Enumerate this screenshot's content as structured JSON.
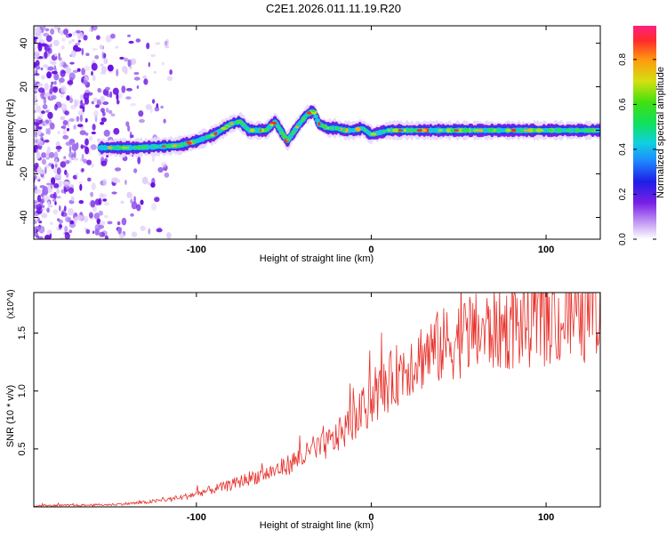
{
  "title": "C2E1.2026.011.11.19.R20",
  "chart_data": [
    {
      "type": "heatmap",
      "xlabel": "Height of straight line (km)",
      "ylabel": "Frequency (Hz)",
      "xlim": [
        -193,
        131
      ],
      "ylim": [
        -50,
        48
      ],
      "xticks": [
        -100,
        0,
        100
      ],
      "yticks": [
        -40,
        -20,
        0,
        20,
        40
      ],
      "colorbar": {
        "label": "Normalized spectral amplitude",
        "range": [
          0,
          0.95
        ],
        "ticks": [
          "0.0",
          "0.2",
          "0.4",
          "0.6",
          "0.8"
        ]
      },
      "ridge": {
        "x": [
          -155,
          -135,
          -110,
          -100,
          -90,
          -80,
          -75,
          -70,
          -60,
          -55,
          -48,
          -42,
          -37,
          -33,
          -30,
          -25,
          -20,
          -15,
          -10,
          -5,
          0,
          5,
          10,
          20,
          40,
          60,
          80,
          100,
          131
        ],
        "y": [
          -8,
          -8,
          -7,
          -5,
          -2,
          3,
          4,
          0,
          0,
          4,
          -5,
          2,
          7,
          9,
          3,
          1,
          1,
          0,
          0,
          1,
          -2,
          -1,
          0,
          0,
          0,
          0,
          0,
          0,
          0
        ]
      }
    },
    {
      "type": "line",
      "xlabel": "Height of straight line (km)",
      "ylabel": "SNR (10 * v/v)",
      "scale_label": "(x10^4)",
      "xlim": [
        -193,
        131
      ],
      "ylim": [
        0,
        1.85
      ],
      "xticks": [
        -100,
        0,
        100
      ],
      "yticks": [
        0.5,
        1.0,
        1.5
      ],
      "ytick_labels": [
        "0.5",
        "1.0",
        "1.5"
      ],
      "color": "#e8302a",
      "envelope": {
        "x": [
          -193,
          -150,
          -130,
          -110,
          -100,
          -90,
          -80,
          -70,
          -60,
          -50,
          -40,
          -30,
          -20,
          -10,
          0,
          10,
          20,
          30,
          40,
          50,
          60,
          80,
          100,
          131
        ],
        "y": [
          0.01,
          0.02,
          0.04,
          0.08,
          0.12,
          0.16,
          0.2,
          0.26,
          0.3,
          0.36,
          0.45,
          0.52,
          0.62,
          0.78,
          0.95,
          1.12,
          1.28,
          1.38,
          1.45,
          1.52,
          1.57,
          1.62,
          1.66,
          1.7
        ]
      }
    }
  ]
}
